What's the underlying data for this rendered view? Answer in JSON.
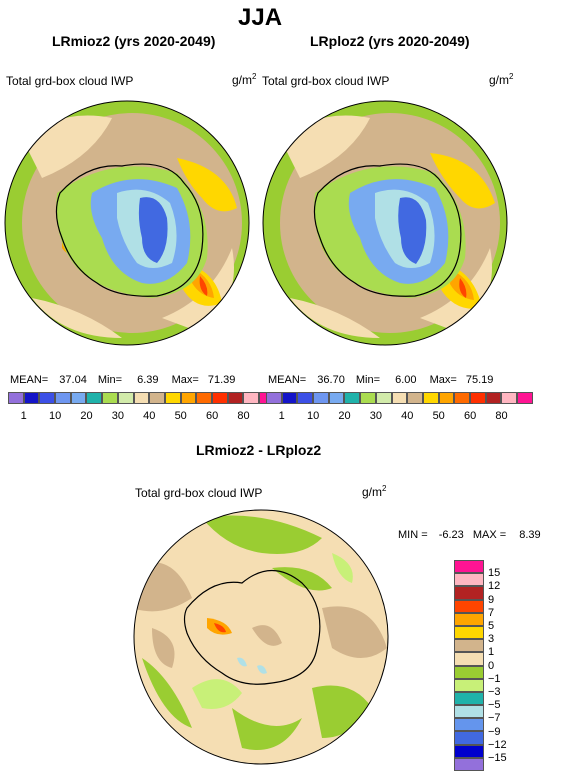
{
  "header": {
    "season": "JJA"
  },
  "panels": [
    {
      "title": "LRmioz2 (yrs 2020-2049)",
      "variable": "Total grd-box cloud IWP",
      "units_base": "g/m",
      "units_exp": "2",
      "stats": {
        "mean_label": "MEAN=",
        "mean": "37.04",
        "min_label": "Min=",
        "min": "6.39",
        "max_label": "Max=",
        "max": "71.39"
      }
    },
    {
      "title": "LRploz2 (yrs 2020-2049)",
      "variable": "Total grd-box cloud IWP",
      "units_base": "g/m",
      "units_exp": "2",
      "stats": {
        "mean_label": "MEAN=",
        "mean": "36.70",
        "min_label": "Min=",
        "min": "6.00",
        "max_label": "Max=",
        "max": "75.19"
      }
    },
    {
      "title": "LRmioz2 - LRploz2",
      "variable": "Total grd-box cloud IWP",
      "units_base": "g/m",
      "units_exp": "2",
      "stats": {
        "min_label": "MIN =",
        "min": "-6.23",
        "max_label": "MAX =",
        "max": "8.39"
      }
    }
  ],
  "abs_colorbar": {
    "colors": [
      "#9370db",
      "#1414c8",
      "#3c50e6",
      "#6e96f0",
      "#78aaf0",
      "#20b2aa",
      "#aadc50",
      "#d2ebaa",
      "#f5deb3",
      "#d2b48c",
      "#ffd700",
      "#ffa500",
      "#ff6a00",
      "#ff3000",
      "#b22222",
      "#ffb6c1",
      "#ff1493"
    ],
    "tick_labels": [
      "1",
      "10",
      "20",
      "30",
      "40",
      "50",
      "60",
      "80"
    ]
  },
  "diff_colorbar": {
    "colors": [
      "#ff1493",
      "#ffb6c1",
      "#b22222",
      "#ff4500",
      "#ffa500",
      "#ffd700",
      "#d2b48c",
      "#f5deb3",
      "#9acd32",
      "#c8f078",
      "#20b2aa",
      "#b0e0e6",
      "#6495ed",
      "#4169e1",
      "#0000cd",
      "#9370db"
    ],
    "tick_labels": [
      "15",
      "12",
      "9",
      "7",
      "5",
      "3",
      "1",
      "0",
      "−1",
      "−3",
      "−5",
      "−7",
      "−9",
      "−12",
      "−15"
    ]
  },
  "map_colors": {
    "ocean_far": "#f5deb3",
    "ocean_mid": "#d2b48c",
    "coast_band": "#9acd32",
    "ice_edge": "#aadc50",
    "interior_1": "#78aaf0",
    "interior_2": "#b0e0e6",
    "interior_3": "#4169e1",
    "hot_1": "#ffd700",
    "hot_2": "#ffa500",
    "hot_3": "#ff4500",
    "diff_bg": "#f5deb3",
    "diff_pos": "#d2b48c",
    "diff_neg": "#9acd32",
    "diff_neg2": "#c8f078"
  }
}
